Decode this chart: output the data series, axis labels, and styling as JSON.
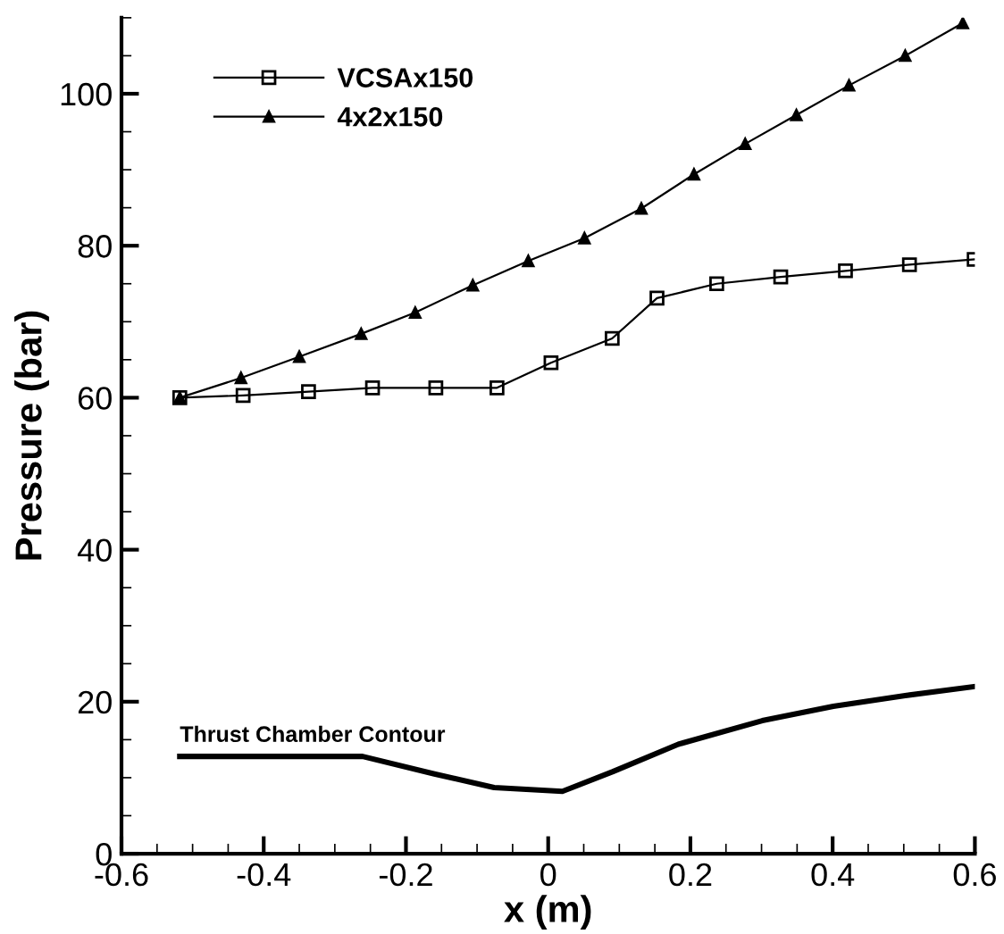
{
  "chart_data": {
    "type": "line",
    "xlabel": "x (m)",
    "ylabel": "Pressure (bar)",
    "xlim": [
      -0.6,
      0.6
    ],
    "ylim": [
      0,
      110
    ],
    "xticks": [
      -0.6,
      -0.4,
      -0.2,
      0,
      0.2,
      0.4,
      0.6
    ],
    "yticks": [
      0,
      20,
      40,
      60,
      80,
      100
    ],
    "grid": false,
    "legend": "top left",
    "series": [
      {
        "name": "VCSAx150",
        "color": "#000000",
        "marker": "square",
        "x": [
          -0.518,
          -0.429,
          -0.337,
          -0.247,
          -0.158,
          -0.072,
          0.004,
          0.09,
          0.153,
          0.237,
          0.327,
          0.418,
          0.508,
          0.599
        ],
        "values": [
          60,
          60.3,
          60.8,
          61.3,
          61.3,
          61.3,
          64.6,
          67.8,
          73.1,
          75.0,
          75.9,
          76.7,
          77.5,
          78.2
        ]
      },
      {
        "name": "4x2x150",
        "color": "#000000",
        "marker": "triangle",
        "x": [
          -0.518,
          -0.432,
          -0.35,
          -0.263,
          -0.187,
          -0.106,
          -0.028,
          0.051,
          0.131,
          0.205,
          0.277,
          0.349,
          0.423,
          0.502,
          0.583
        ],
        "values": [
          60,
          62.6,
          65.4,
          68.4,
          71.2,
          74.8,
          78.0,
          81.0,
          84.9,
          89.4,
          93.4,
          97.2,
          101.1,
          105.0,
          109.3
        ]
      },
      {
        "color": "#000000",
        "marker": "none",
        "x": [
          -0.518,
          -0.261,
          -0.16,
          -0.076,
          0.02,
          0.091,
          0.183,
          0.301,
          0.401,
          0.502,
          0.6
        ],
        "values": [
          12.8,
          12.8,
          10.5,
          8.7,
          8.2,
          10.8,
          14.4,
          17.5,
          19.4,
          20.8,
          22.0
        ]
      }
    ],
    "annotations": [
      {
        "text": "Thrust Chamber Contour",
        "x": -0.518,
        "y": 12.8
      }
    ]
  }
}
